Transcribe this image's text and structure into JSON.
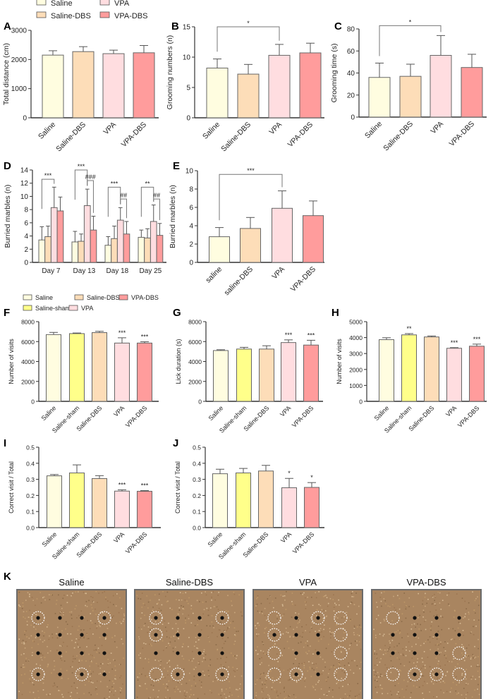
{
  "legend_top": [
    {
      "label": "Saline",
      "color": "#FFFDE0"
    },
    {
      "label": "Saline-DBS",
      "color": "#FDDDB8"
    },
    {
      "label": "VPA",
      "color": "#FFDDE0"
    },
    {
      "label": "VPA-DBS",
      "color": "#FF9C9C"
    }
  ],
  "legend_f": [
    {
      "label": "Saline",
      "color": "#FFFDE0"
    },
    {
      "label": "Saline-sham",
      "color": "#FFFF8A"
    },
    {
      "label": "Saline-DBS",
      "color": "#FDDDB8"
    },
    {
      "label": "VPA",
      "color": "#FFDDE0"
    },
    {
      "label": "VPA-DBS",
      "color": "#FF9C9C"
    }
  ],
  "chart_data": [
    {
      "panel": "A",
      "type": "bar",
      "ylabel": "Total distance (cm)",
      "categories": [
        "Saline",
        "Saline-DBS",
        "VPA",
        "VPA-DBS"
      ],
      "values": [
        2150,
        2270,
        2200,
        2230
      ],
      "errors": [
        150,
        170,
        120,
        250
      ],
      "bar_colors": [
        "#FFFDE0",
        "#FDDDB8",
        "#FFDDE0",
        "#FF9C9C"
      ],
      "ylim": [
        0,
        3000
      ],
      "yticks": [
        "0",
        "1000",
        "2000",
        "3000"
      ],
      "stars": [],
      "brackets": []
    },
    {
      "panel": "B",
      "type": "bar",
      "ylabel": "Grooming numbers (n)",
      "categories": [
        "Saline",
        "Saline-DBS",
        "VPA",
        "VPA-DBS"
      ],
      "values": [
        8.2,
        7.2,
        10.3,
        10.7
      ],
      "errors": [
        1.5,
        1.6,
        1.8,
        1.6
      ],
      "bar_colors": [
        "#FFFDE0",
        "#FDDDB8",
        "#FFDDE0",
        "#FF9C9C"
      ],
      "ylim": [
        0,
        15
      ],
      "yticks": [
        "0",
        "5",
        "10",
        "15"
      ],
      "stars": [],
      "brackets": [
        {
          "from": 0,
          "to": 2,
          "level": 15,
          "label": "*"
        }
      ]
    },
    {
      "panel": "C",
      "type": "bar",
      "ylabel": "Grooming time (s)",
      "categories": [
        "Saline",
        "Saline-DBS",
        "VPA",
        "VPA-DBS"
      ],
      "values": [
        36,
        37,
        56,
        45
      ],
      "errors": [
        13,
        11,
        18,
        12
      ],
      "bar_colors": [
        "#FFFDE0",
        "#FDDDB8",
        "#FFDDE0",
        "#FF9C9C"
      ],
      "ylim": [
        0,
        80
      ],
      "yticks": [
        "0",
        "20",
        "40",
        "60",
        "80"
      ],
      "stars": [],
      "brackets": [
        {
          "from": 0,
          "to": 2,
          "level": 83,
          "label": "*"
        }
      ]
    },
    {
      "panel": "D",
      "type": "bar",
      "ylabel": "Burried marbles (n)",
      "categories": [
        "Day 7",
        "Day 13",
        "Day 18",
        "Day 25"
      ],
      "series": [
        {
          "name": "Saline",
          "color": "#FFFDE0",
          "values": [
            3.4,
            3.1,
            2.6,
            3.8
          ],
          "errors": [
            2.0,
            1.6,
            1.3,
            1.1
          ]
        },
        {
          "name": "Saline-DBS",
          "color": "#FDDDB8",
          "values": [
            3.9,
            3.2,
            3.6,
            3.7
          ],
          "errors": [
            1.6,
            1.1,
            1.9,
            1.4
          ]
        },
        {
          "name": "VPA",
          "color": "#FFDDE0",
          "values": [
            8.3,
            8.6,
            6.4,
            6.2
          ],
          "errors": [
            3.1,
            2.5,
            1.9,
            2.5
          ]
        },
        {
          "name": "VPA-DBS",
          "color": "#FF9C9C",
          "values": [
            7.8,
            4.9,
            4.3,
            4.1
          ],
          "errors": [
            2.1,
            2.1,
            1.9,
            1.8
          ]
        }
      ],
      "ylim": [
        0,
        14
      ],
      "yticks": [
        "0",
        "2",
        "4",
        "6",
        "8",
        "10",
        "12",
        "14"
      ],
      "brackets": [
        {
          "group": 0,
          "from": 0,
          "to": 2,
          "level": 12.6,
          "label": "***"
        },
        {
          "group": 1,
          "from": 0,
          "to": 2,
          "level": 14.0,
          "label": "***"
        },
        {
          "group": 1,
          "from": 2,
          "to": 3,
          "level": 12.4,
          "label": "###"
        },
        {
          "group": 2,
          "from": 0,
          "to": 2,
          "level": 11.4,
          "label": "***"
        },
        {
          "group": 2,
          "from": 2,
          "to": 3,
          "level": 9.6,
          "label": "##"
        },
        {
          "group": 3,
          "from": 0,
          "to": 2,
          "level": 11.4,
          "label": "**"
        },
        {
          "group": 3,
          "from": 2,
          "to": 3,
          "level": 9.6,
          "label": "##"
        }
      ]
    },
    {
      "panel": "E",
      "type": "bar",
      "ylabel": "Burried marbles (n)",
      "categories": [
        "saline",
        "saline-DBS",
        "VPA",
        "VPA-DBS"
      ],
      "values": [
        2.8,
        3.7,
        5.9,
        5.1
      ],
      "errors": [
        1.0,
        1.2,
        1.9,
        1.6
      ],
      "bar_colors": [
        "#FFFDE0",
        "#FDDDB8",
        "#FFDDE0",
        "#FF9C9C"
      ],
      "ylim": [
        0,
        10
      ],
      "yticks": [
        "0",
        "2",
        "4",
        "6",
        "8",
        "10"
      ],
      "stars": [],
      "brackets": [
        {
          "from": 0,
          "to": 2,
          "level": 9.6,
          "label": "***"
        }
      ]
    },
    {
      "panel": "F",
      "type": "bar",
      "ylabel": "Number of visits",
      "categories": [
        "Saline",
        "Saline-sham",
        "Saline-DBS",
        "VPA",
        "VPA-DBS"
      ],
      "values": [
        6700,
        6800,
        6900,
        5850,
        5850
      ],
      "errors": [
        220,
        60,
        130,
        530,
        130
      ],
      "bar_colors": [
        "#FFFDE0",
        "#FFFF8A",
        "#FDDDB8",
        "#FFDDE0",
        "#FF9C9C"
      ],
      "ylim": [
        0,
        8000
      ],
      "yticks": [
        "0",
        "2000",
        "4000",
        "6000",
        "8000"
      ],
      "stars": [
        {
          "index": 3,
          "label": "***"
        },
        {
          "index": 4,
          "label": "***"
        }
      ],
      "brackets": []
    },
    {
      "panel": "G",
      "type": "bar",
      "ylabel": "Lick duration (s)",
      "categories": [
        "Saline",
        "Saline-sham",
        "Saline-DBS",
        "VPA",
        "VPA-DBS"
      ],
      "values": [
        5100,
        5250,
        5250,
        5900,
        5650
      ],
      "errors": [
        80,
        170,
        330,
        270,
        480
      ],
      "bar_colors": [
        "#FFFDE0",
        "#FFFF8A",
        "#FDDDB8",
        "#FFDDE0",
        "#FF9C9C"
      ],
      "ylim": [
        0,
        8000
      ],
      "yticks": [
        "0",
        "2000",
        "4000",
        "6000",
        "8000"
      ],
      "stars": [
        {
          "index": 3,
          "label": "***"
        },
        {
          "index": 4,
          "label": "***"
        }
      ],
      "brackets": []
    },
    {
      "panel": "H",
      "type": "bar",
      "ylabel": "Number of visits",
      "categories": [
        "Saline",
        "Saline-sham",
        "Saline-DBS",
        "VPA",
        "VPA-DBS"
      ],
      "values": [
        3870,
        4170,
        4040,
        3330,
        3460
      ],
      "errors": [
        120,
        80,
        60,
        40,
        130
      ],
      "bar_colors": [
        "#FFFDE0",
        "#FFFF8A",
        "#FDDDB8",
        "#FFDDE0",
        "#FF9C9C"
      ],
      "ylim": [
        0,
        5000
      ],
      "yticks": [
        "0",
        "1000",
        "2000",
        "3000",
        "4000",
        "5000"
      ],
      "stars": [
        {
          "index": 1,
          "label": "**"
        },
        {
          "index": 3,
          "label": "***"
        },
        {
          "index": 4,
          "label": "***"
        }
      ],
      "brackets": []
    },
    {
      "panel": "I",
      "type": "bar",
      "ylabel": "Correct visit / Total",
      "categories": [
        "Saline",
        "Saline-sham",
        "Saline-DBS",
        "VPA",
        "VPA-DBS"
      ],
      "values": [
        0.322,
        0.34,
        0.305,
        0.227,
        0.226
      ],
      "errors": [
        0.008,
        0.05,
        0.018,
        0.008,
        0.004
      ],
      "bar_colors": [
        "#FFFDE0",
        "#FFFF8A",
        "#FDDDB8",
        "#FFDDE0",
        "#FF9C9C"
      ],
      "ylim": [
        0,
        0.5
      ],
      "yticks": [
        "0.0",
        "0.1",
        "0.2",
        "0.3",
        "0.4",
        "0.5"
      ],
      "stars": [
        {
          "index": 3,
          "label": "***"
        },
        {
          "index": 4,
          "label": "***"
        }
      ],
      "brackets": []
    },
    {
      "panel": "J",
      "type": "bar",
      "ylabel": "Correct visit / Total",
      "categories": [
        "Saline",
        "Saline-sham",
        "Saline-DBS",
        "VPA",
        "VPA-DBS"
      ],
      "values": [
        0.335,
        0.34,
        0.352,
        0.248,
        0.25
      ],
      "errors": [
        0.028,
        0.028,
        0.035,
        0.058,
        0.03
      ],
      "bar_colors": [
        "#FFFDE0",
        "#FFFF8A",
        "#FDDDB8",
        "#FFDDE0",
        "#FF9C9C"
      ],
      "ylim": [
        0,
        0.5
      ],
      "yticks": [
        "0.0",
        "0.1",
        "0.2",
        "0.3",
        "0.4",
        "0.5"
      ],
      "stars": [
        {
          "index": 3,
          "label": "*"
        },
        {
          "index": 4,
          "label": "*"
        }
      ],
      "brackets": []
    }
  ],
  "panel_k": {
    "panel": "K",
    "photos": [
      {
        "title": "Saline",
        "circled": [
          [
            0,
            0
          ],
          [
            0,
            3
          ],
          [
            3,
            0
          ],
          [
            3,
            2
          ]
        ],
        "buried": []
      },
      {
        "title": "Saline-DBS",
        "circled": [
          [
            0,
            0
          ],
          [
            0,
            3
          ],
          [
            1,
            0
          ],
          [
            3,
            0
          ],
          [
            3,
            1
          ],
          [
            3,
            3
          ]
        ],
        "buried": [
          [
            3,
            0
          ]
        ]
      },
      {
        "title": "VPA",
        "circled": [
          [
            0,
            0
          ],
          [
            0,
            2
          ],
          [
            0,
            3
          ],
          [
            1,
            0
          ],
          [
            1,
            3
          ],
          [
            2,
            0
          ],
          [
            2,
            3
          ],
          [
            3,
            0
          ],
          [
            3,
            1
          ],
          [
            3,
            3
          ]
        ],
        "buried": [
          [
            0,
            0
          ],
          [
            0,
            3
          ],
          [
            1,
            3
          ],
          [
            2,
            0
          ],
          [
            2,
            3
          ],
          [
            3,
            0
          ],
          [
            3,
            3
          ]
        ]
      },
      {
        "title": "VPA-DBS",
        "circled": [
          [
            0,
            0
          ],
          [
            2,
            3
          ],
          [
            3,
            0
          ],
          [
            3,
            1
          ],
          [
            3,
            2
          ],
          [
            3,
            3
          ]
        ],
        "buried": [
          [
            0,
            0
          ],
          [
            2,
            3
          ],
          [
            3,
            0
          ],
          [
            3,
            3
          ]
        ]
      }
    ]
  }
}
